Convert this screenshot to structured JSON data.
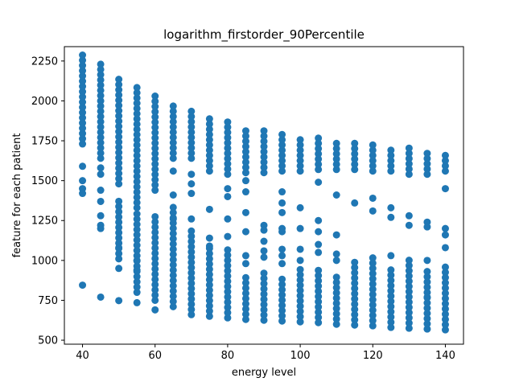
{
  "chart_data": {
    "type": "scatter",
    "title": "logarithm_firstorder_90Percentile",
    "xlabel": "energy level",
    "ylabel": "feature for each patient",
    "xlim": [
      35,
      145
    ],
    "ylim": [
      475,
      2340
    ],
    "xticks": [
      40,
      60,
      80,
      100,
      120,
      140
    ],
    "yticks": [
      500,
      750,
      1000,
      1250,
      1500,
      1750,
      2000,
      2250
    ],
    "grid": false,
    "marker_color": "#1f77b4",
    "series": [
      {
        "outliers": [
          [
            40,
            845
          ],
          [
            45,
            770
          ],
          [
            50,
            748
          ],
          [
            55,
            735
          ]
        ],
        "columns": [
          {
            "x": 40,
            "dense": [
              [
                1730,
                2310
              ]
            ],
            "sparse": [
              1590,
              1500,
              1450,
              1420
            ]
          },
          {
            "x": 45,
            "dense": [
              [
                1640,
                2240
              ]
            ],
            "sparse": [
              1580,
              1540,
              1440,
              1370,
              1280,
              1220,
              1200
            ]
          },
          {
            "x": 50,
            "dense": [
              [
                1010,
                1380
              ],
              [
                1480,
                2160
              ]
            ],
            "sparse": [
              1080,
              950
            ]
          },
          {
            "x": 55,
            "dense": [
              [
                800,
                1300
              ],
              [
                1330,
                2100
              ]
            ],
            "sparse": [
              1000,
              940
            ]
          },
          {
            "x": 60,
            "dense": [
              [
                750,
                1300
              ],
              [
                1440,
                2040
              ]
            ],
            "sparse": [
              690
            ]
          },
          {
            "x": 65,
            "dense": [
              [
                710,
                1340
              ],
              [
                1640,
                1990
              ]
            ],
            "sparse": [
              1560,
              1410,
              1260
            ]
          },
          {
            "x": 70,
            "dense": [
              [
                660,
                1200
              ],
              [
                1640,
                1950
              ]
            ],
            "sparse": [
              1540,
              1480,
              1420,
              1260
            ]
          },
          {
            "x": 75,
            "dense": [
              [
                650,
                1100
              ],
              [
                1560,
                1910
              ]
            ],
            "sparse": [
              1320,
              1140,
              1090
            ]
          },
          {
            "x": 80,
            "dense": [
              [
                640,
                1080
              ],
              [
                1540,
                1870
              ]
            ],
            "sparse": [
              1450,
              1400,
              1260,
              1150
            ]
          },
          {
            "x": 85,
            "dense": [
              [
                630,
                900
              ],
              [
                1550,
                1840
              ]
            ],
            "sparse": [
              1500,
              1430,
              1300,
              1180,
              1030,
              980
            ]
          },
          {
            "x": 90,
            "dense": [
              [
                625,
                950
              ],
              [
                1550,
                1820
              ]
            ],
            "sparse": [
              1220,
              1190,
              1120,
              1060,
              1020
            ]
          },
          {
            "x": 95,
            "dense": [
              [
                620,
                900
              ],
              [
                1560,
                1800
              ]
            ],
            "sparse": [
              1430,
              1360,
              1300,
              1200,
              1180,
              1070,
              1030,
              980
            ]
          },
          {
            "x": 100,
            "dense": [
              [
                615,
                960
              ],
              [
                1560,
                1780
              ]
            ],
            "sparse": [
              1330,
              1200,
              1070,
              1000
            ]
          },
          {
            "x": 105,
            "dense": [
              [
                610,
                960
              ],
              [
                1570,
                1770
              ]
            ],
            "sparse": [
              1490,
              1250,
              1180,
              1100,
              1050
            ]
          },
          {
            "x": 110,
            "dense": [
              [
                600,
                900
              ],
              [
                1570,
                1760
              ]
            ],
            "sparse": [
              1410,
              1160,
              1040,
              1000
            ]
          },
          {
            "x": 115,
            "dense": [
              [
                595,
                1000
              ],
              [
                1570,
                1750
              ]
            ],
            "sparse": [
              1360
            ]
          },
          {
            "x": 120,
            "dense": [
              [
                590,
                1020
              ],
              [
                1560,
                1730
              ]
            ],
            "sparse": [
              1390,
              1310
            ]
          },
          {
            "x": 125,
            "dense": [
              [
                580,
                960
              ],
              [
                1560,
                1720
              ]
            ],
            "sparse": [
              1330,
              1270,
              1030
            ]
          },
          {
            "x": 130,
            "dense": [
              [
                575,
                1020
              ],
              [
                1540,
                1710
              ]
            ],
            "sparse": [
              1280,
              1220
            ]
          },
          {
            "x": 135,
            "dense": [
              [
                570,
                940
              ],
              [
                1540,
                1700
              ]
            ],
            "sparse": [
              1240,
              1210,
              1000,
              770
            ]
          },
          {
            "x": 140,
            "dense": [
              [
                565,
                980
              ],
              [
                1560,
                1690
              ]
            ],
            "sparse": [
              1450,
              1200,
              1160,
              1080
            ]
          }
        ]
      }
    ]
  }
}
